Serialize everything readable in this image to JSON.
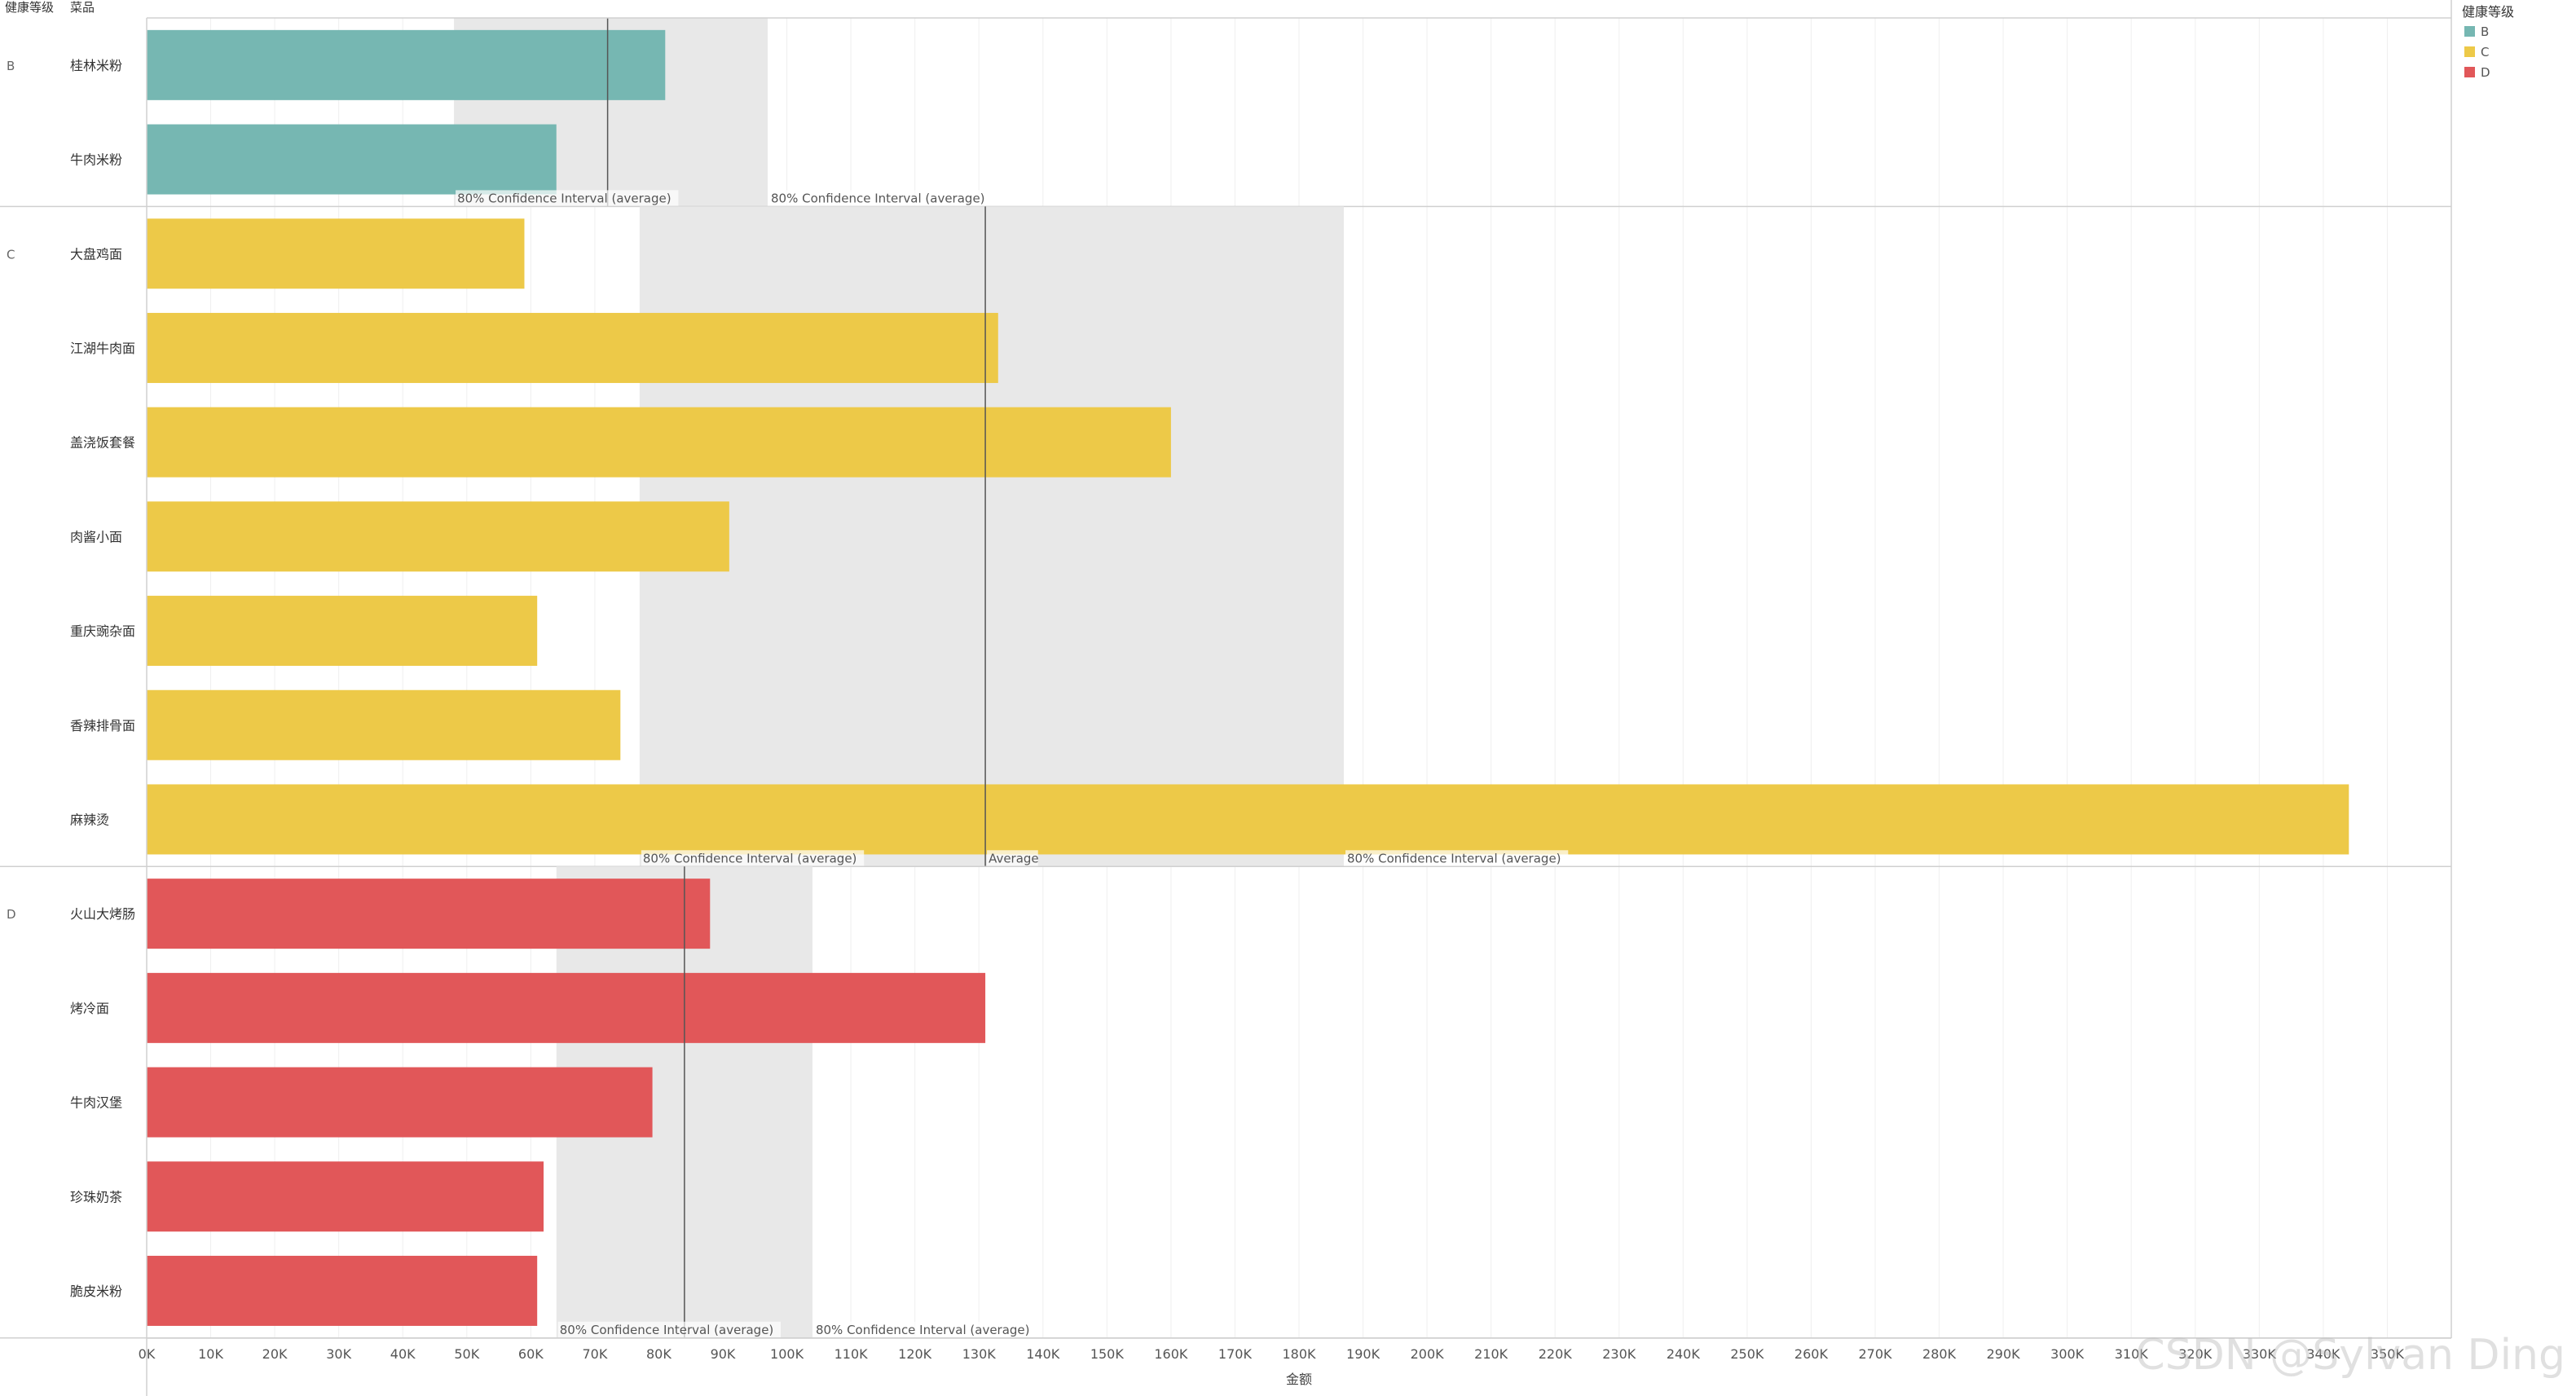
{
  "chart_data": {
    "type": "bar",
    "orientation": "horizontal",
    "row_headers": [
      "健康等级",
      "菜品"
    ],
    "xlabel": "金额",
    "xlim": [
      0,
      360000
    ],
    "x_ticks": [
      0,
      10000,
      20000,
      30000,
      40000,
      50000,
      60000,
      70000,
      80000,
      90000,
      100000,
      110000,
      120000,
      130000,
      140000,
      150000,
      160000,
      170000,
      180000,
      190000,
      200000,
      210000,
      220000,
      230000,
      240000,
      250000,
      260000,
      270000,
      280000,
      290000,
      300000,
      310000,
      320000,
      330000,
      340000,
      350000
    ],
    "x_tick_labels": [
      "0K",
      "10K",
      "20K",
      "30K",
      "40K",
      "50K",
      "60K",
      "70K",
      "80K",
      "90K",
      "100K",
      "110K",
      "120K",
      "130K",
      "140K",
      "150K",
      "160K",
      "170K",
      "180K",
      "190K",
      "200K",
      "210K",
      "220K",
      "230K",
      "240K",
      "250K",
      "260K",
      "270K",
      "280K",
      "290K",
      "300K",
      "310K",
      "320K",
      "330K",
      "340K",
      "350K"
    ],
    "grid": "vertical",
    "legend": {
      "title": "健康等级",
      "position": "top-right",
      "entries": [
        {
          "label": "B",
          "color": "#76b7b2"
        },
        {
          "label": "C",
          "color": "#edc948"
        },
        {
          "label": "D",
          "color": "#e15759"
        }
      ]
    },
    "groups": [
      {
        "level": "B",
        "color": "#76b7b2",
        "average": 72000,
        "ci80": [
          48000,
          97000
        ],
        "items": [
          {
            "name": "桂林米粉",
            "value": 81000
          },
          {
            "name": "牛肉米粉",
            "value": 64000
          }
        ],
        "annotations": [
          "80% Confidence Interval (average)",
          "80% Confidence Interval (average)"
        ]
      },
      {
        "level": "C",
        "color": "#edc948",
        "average": 131000,
        "ci80": [
          77000,
          187000
        ],
        "items": [
          {
            "name": "大盘鸡面",
            "value": 59000
          },
          {
            "name": "江湖牛肉面",
            "value": 133000
          },
          {
            "name": "盖浇饭套餐",
            "value": 160000
          },
          {
            "name": "肉酱小面",
            "value": 91000
          },
          {
            "name": "重庆豌杂面",
            "value": 61000
          },
          {
            "name": "香辣排骨面",
            "value": 74000
          },
          {
            "name": "麻辣烫",
            "value": 344000
          }
        ],
        "annotations": [
          "80% Confidence Interval (average)",
          "Average",
          "80% Confidence Interval (average)"
        ]
      },
      {
        "level": "D",
        "color": "#e15759",
        "average": 84000,
        "ci80": [
          64000,
          104000
        ],
        "items": [
          {
            "name": "火山大烤肠",
            "value": 88000
          },
          {
            "name": "烤冷面",
            "value": 131000
          },
          {
            "name": "牛肉汉堡",
            "value": 79000
          },
          {
            "name": "珍珠奶茶",
            "value": 62000
          },
          {
            "name": "脆皮米粉",
            "value": 61000
          }
        ],
        "annotations": [
          "80% Confidence Interval (average)",
          "80% Confidence Interval (average)"
        ]
      }
    ],
    "watermark": "CSDN @Sylvan Ding"
  }
}
